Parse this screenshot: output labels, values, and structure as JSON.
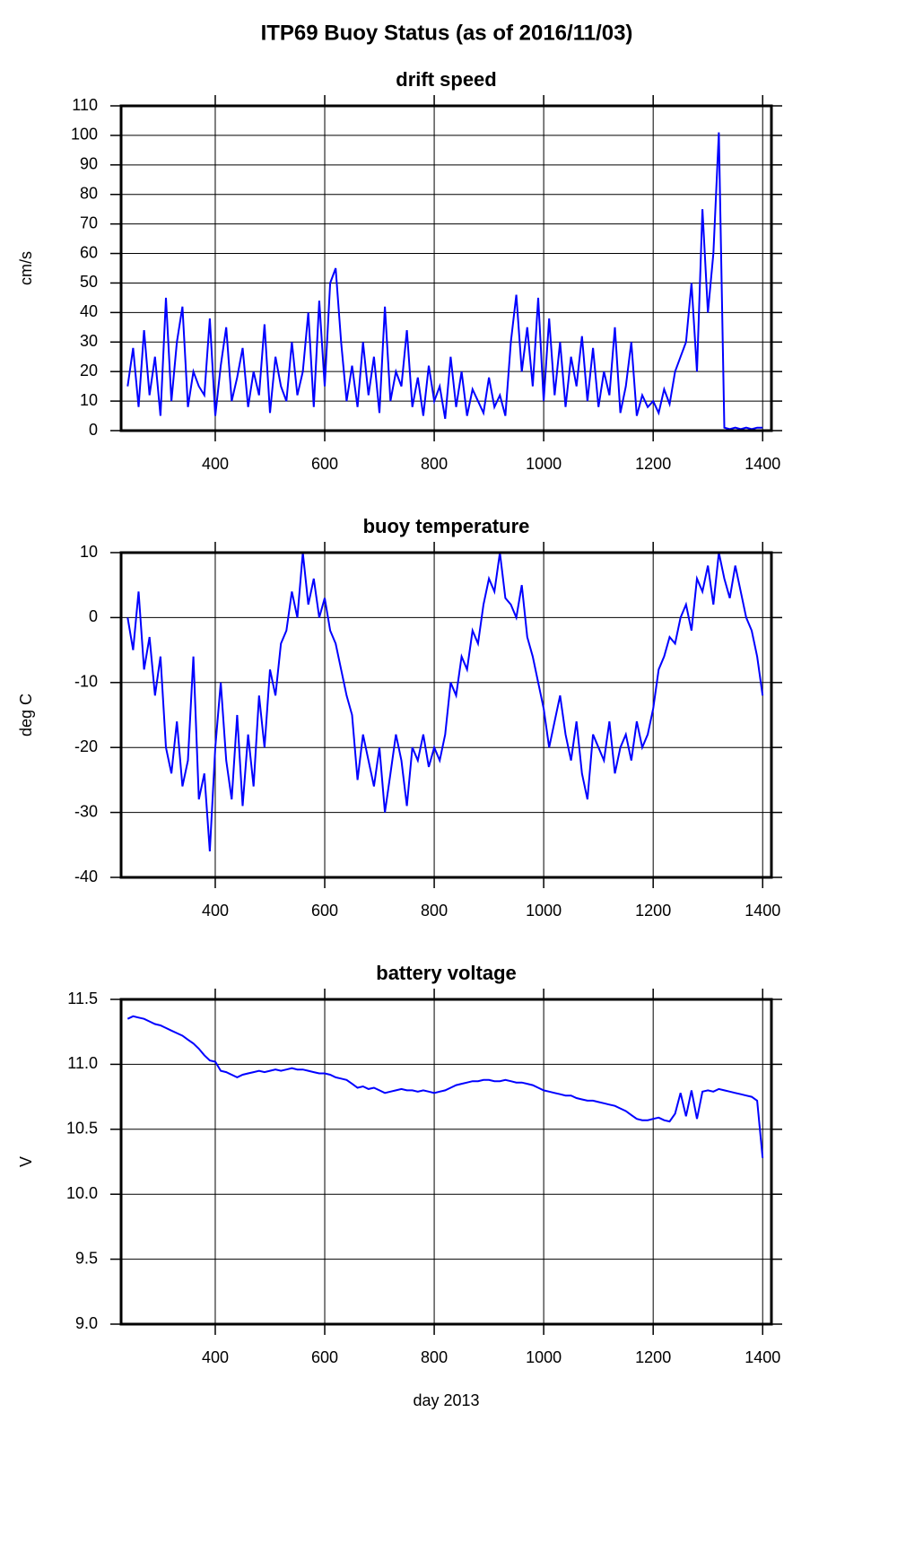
{
  "title": "ITP69 Buoy Status (as of 2016/11/03)",
  "chart_data": [
    {
      "type": "line",
      "title": "drift speed",
      "y_label": "cm/s",
      "xlim": [
        228,
        1416
      ],
      "xticks": [
        400,
        600,
        800,
        1000,
        1200,
        1400
      ],
      "ylim": [
        0,
        110
      ],
      "yticks": [
        0,
        10,
        20,
        30,
        40,
        50,
        60,
        70,
        80,
        90,
        100,
        110
      ],
      "grid": true,
      "x": [
        240,
        250,
        260,
        270,
        280,
        290,
        300,
        310,
        320,
        330,
        340,
        350,
        360,
        370,
        380,
        390,
        400,
        410,
        420,
        430,
        440,
        450,
        460,
        470,
        480,
        490,
        500,
        510,
        520,
        530,
        540,
        550,
        560,
        570,
        580,
        590,
        600,
        610,
        620,
        630,
        640,
        650,
        660,
        670,
        680,
        690,
        700,
        710,
        720,
        730,
        740,
        750,
        760,
        770,
        780,
        790,
        800,
        810,
        820,
        830,
        840,
        850,
        860,
        870,
        880,
        890,
        900,
        910,
        920,
        930,
        940,
        950,
        960,
        970,
        980,
        990,
        1000,
        1010,
        1020,
        1030,
        1040,
        1050,
        1060,
        1070,
        1080,
        1090,
        1100,
        1110,
        1120,
        1130,
        1140,
        1150,
        1160,
        1170,
        1180,
        1190,
        1200,
        1210,
        1220,
        1230,
        1240,
        1250,
        1260,
        1270,
        1280,
        1290,
        1300,
        1310,
        1320,
        1330,
        1340,
        1350,
        1360,
        1370,
        1380,
        1390,
        1400
      ],
      "series": [
        {
          "color": "#0000ff",
          "values": [
            15,
            28,
            8,
            34,
            12,
            25,
            5,
            45,
            10,
            30,
            42,
            8,
            20,
            15,
            12,
            38,
            5,
            22,
            35,
            10,
            18,
            28,
            8,
            20,
            12,
            36,
            6,
            25,
            15,
            10,
            30,
            12,
            20,
            40,
            8,
            44,
            15,
            50,
            55,
            30,
            10,
            22,
            8,
            30,
            12,
            25,
            6,
            42,
            10,
            20,
            15,
            34,
            8,
            18,
            5,
            22,
            10,
            15,
            4,
            25,
            8,
            20,
            5,
            14,
            10,
            6,
            18,
            8,
            12,
            5,
            30,
            46,
            20,
            35,
            15,
            45,
            10,
            38,
            12,
            30,
            8,
            25,
            15,
            32,
            10,
            28,
            8,
            20,
            12,
            35,
            6,
            15,
            30,
            5,
            12,
            8,
            10,
            6,
            14,
            9,
            20,
            25,
            30,
            50,
            20,
            75,
            40,
            60,
            101,
            1,
            0.5,
            1,
            0.5,
            1,
            0.5,
            1,
            1
          ]
        }
      ]
    },
    {
      "type": "line",
      "title": "buoy temperature",
      "y_label": "deg C",
      "xlim": [
        228,
        1416
      ],
      "xticks": [
        400,
        600,
        800,
        1000,
        1200,
        1400
      ],
      "ylim": [
        -40,
        10
      ],
      "yticks": [
        -40,
        -30,
        -20,
        -10,
        0,
        10
      ],
      "grid": true,
      "x": [
        240,
        250,
        260,
        270,
        280,
        290,
        300,
        310,
        320,
        330,
        340,
        350,
        360,
        370,
        380,
        390,
        400,
        410,
        420,
        430,
        440,
        450,
        460,
        470,
        480,
        490,
        500,
        510,
        520,
        530,
        540,
        550,
        560,
        570,
        580,
        590,
        600,
        610,
        620,
        630,
        640,
        650,
        660,
        670,
        680,
        690,
        700,
        710,
        720,
        730,
        740,
        750,
        760,
        770,
        780,
        790,
        800,
        810,
        820,
        830,
        840,
        850,
        860,
        870,
        880,
        890,
        900,
        910,
        920,
        930,
        940,
        950,
        960,
        970,
        980,
        990,
        1000,
        1010,
        1020,
        1030,
        1040,
        1050,
        1060,
        1070,
        1080,
        1090,
        1100,
        1110,
        1120,
        1130,
        1140,
        1150,
        1160,
        1170,
        1180,
        1190,
        1200,
        1210,
        1220,
        1230,
        1240,
        1250,
        1260,
        1270,
        1280,
        1290,
        1300,
        1310,
        1320,
        1330,
        1340,
        1350,
        1360,
        1370,
        1380,
        1390,
        1400
      ],
      "series": [
        {
          "color": "#0000ff",
          "values": [
            0,
            -5,
            4,
            -8,
            -3,
            -12,
            -6,
            -20,
            -24,
            -16,
            -26,
            -22,
            -6,
            -28,
            -24,
            -36,
            -20,
            -10,
            -22,
            -28,
            -15,
            -29,
            -18,
            -26,
            -12,
            -20,
            -8,
            -12,
            -4,
            -2,
            4,
            0,
            10,
            2,
            6,
            0,
            3,
            -2,
            -4,
            -8,
            -12,
            -15,
            -25,
            -18,
            -22,
            -26,
            -20,
            -30,
            -24,
            -18,
            -22,
            -29,
            -20,
            -22,
            -18,
            -23,
            -20,
            -22,
            -18,
            -10,
            -12,
            -6,
            -8,
            -2,
            -4,
            2,
            6,
            4,
            10,
            3,
            2,
            0,
            5,
            -3,
            -6,
            -10,
            -14,
            -20,
            -16,
            -12,
            -18,
            -22,
            -16,
            -24,
            -28,
            -18,
            -20,
            -22,
            -16,
            -24,
            -20,
            -18,
            -22,
            -16,
            -20,
            -18,
            -14,
            -8,
            -6,
            -3,
            -4,
            0,
            2,
            -2,
            6,
            4,
            8,
            2,
            10,
            6,
            3,
            8,
            4,
            0,
            -2,
            -6,
            -12
          ]
        }
      ]
    },
    {
      "type": "line",
      "title": "battery voltage",
      "y_label": "V",
      "x_label": "day 2013",
      "xlim": [
        228,
        1416
      ],
      "xticks": [
        400,
        600,
        800,
        1000,
        1200,
        1400
      ],
      "ylim": [
        9.0,
        11.5
      ],
      "yticks": [
        {
          "value": 9.0,
          "label": "9.0"
        },
        9.5,
        {
          "value": 10.0,
          "label": "10.0"
        },
        10.5,
        {
          "value": 11.0,
          "label": "11.0"
        },
        11.5
      ],
      "grid": true,
      "x": [
        240,
        250,
        260,
        270,
        280,
        290,
        300,
        310,
        320,
        330,
        340,
        350,
        360,
        370,
        380,
        390,
        400,
        410,
        420,
        430,
        440,
        450,
        460,
        470,
        480,
        490,
        500,
        510,
        520,
        530,
        540,
        550,
        560,
        570,
        580,
        590,
        600,
        610,
        620,
        630,
        640,
        650,
        660,
        670,
        680,
        690,
        700,
        710,
        720,
        730,
        740,
        750,
        760,
        770,
        780,
        790,
        800,
        810,
        820,
        830,
        840,
        850,
        860,
        870,
        880,
        890,
        900,
        910,
        920,
        930,
        940,
        950,
        960,
        970,
        980,
        990,
        1000,
        1010,
        1020,
        1030,
        1040,
        1050,
        1060,
        1070,
        1080,
        1090,
        1100,
        1110,
        1120,
        1130,
        1140,
        1150,
        1160,
        1170,
        1180,
        1190,
        1200,
        1210,
        1220,
        1230,
        1240,
        1250,
        1260,
        1270,
        1280,
        1290,
        1300,
        1310,
        1320,
        1330,
        1340,
        1350,
        1360,
        1370,
        1380,
        1390,
        1400
      ],
      "series": [
        {
          "color": "#0000ff",
          "values": [
            11.35,
            11.37,
            11.36,
            11.35,
            11.33,
            11.31,
            11.3,
            11.28,
            11.26,
            11.24,
            11.22,
            11.19,
            11.16,
            11.12,
            11.07,
            11.03,
            11.02,
            10.95,
            10.94,
            10.92,
            10.9,
            10.92,
            10.93,
            10.94,
            10.95,
            10.94,
            10.95,
            10.96,
            10.95,
            10.96,
            10.97,
            10.96,
            10.96,
            10.95,
            10.94,
            10.93,
            10.93,
            10.92,
            10.9,
            10.89,
            10.88,
            10.85,
            10.82,
            10.83,
            10.81,
            10.82,
            10.8,
            10.78,
            10.79,
            10.8,
            10.81,
            10.8,
            10.8,
            10.79,
            10.8,
            10.79,
            10.78,
            10.79,
            10.8,
            10.82,
            10.84,
            10.85,
            10.86,
            10.87,
            10.87,
            10.88,
            10.88,
            10.87,
            10.87,
            10.88,
            10.87,
            10.86,
            10.86,
            10.85,
            10.84,
            10.82,
            10.8,
            10.79,
            10.78,
            10.77,
            10.76,
            10.76,
            10.74,
            10.73,
            10.72,
            10.72,
            10.71,
            10.7,
            10.69,
            10.68,
            10.66,
            10.64,
            10.61,
            10.58,
            10.57,
            10.57,
            10.58,
            10.59,
            10.57,
            10.56,
            10.62,
            10.78,
            10.6,
            10.8,
            10.58,
            10.79,
            10.8,
            10.79,
            10.81,
            10.8,
            10.79,
            10.78,
            10.77,
            10.76,
            10.75,
            10.72,
            10.28
          ]
        }
      ]
    }
  ]
}
